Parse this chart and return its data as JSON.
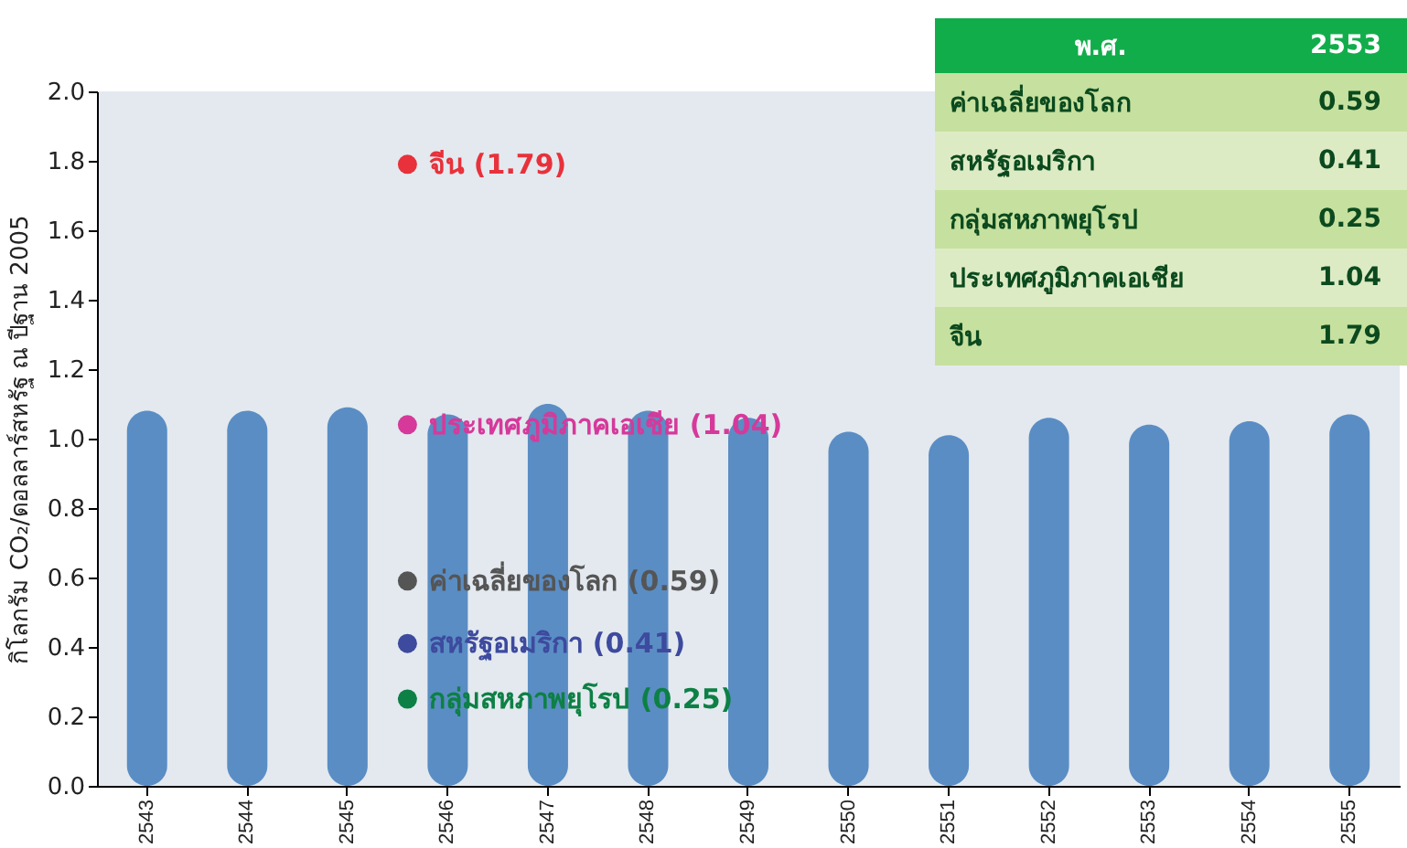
{
  "chart_data": {
    "type": "bar",
    "ylabel": "กิโลกรัม CO₂/ดอลลาร์สหรัฐ ณ ปีฐาน 2005",
    "categories": [
      "2543",
      "2544",
      "2545",
      "2546",
      "2547",
      "2548",
      "2549",
      "2550",
      "2551",
      "2552",
      "2553",
      "2554",
      "2555"
    ],
    "series": [
      {
        "color": "#5a8dc4",
        "values": [
          1.08,
          1.08,
          1.09,
          1.07,
          1.1,
          1.08,
          1.06,
          1.02,
          1.01,
          1.06,
          1.04,
          1.05,
          1.07
        ]
      },
      {
        "type": "scatter",
        "color": "#555555",
        "values": [
          null,
          null,
          null,
          0.59,
          null,
          null,
          null,
          null,
          null,
          null,
          null,
          null,
          null
        ],
        "value_labels": [
          null,
          null,
          null,
          "ค่าเฉลี่ยของโลก (0.59)",
          null,
          null,
          null,
          null,
          null,
          null,
          null,
          null,
          null
        ]
      },
      {
        "type": "scatter",
        "color": "#3d4a9e",
        "values": [
          null,
          null,
          null,
          0.41,
          null,
          null,
          null,
          null,
          null,
          null,
          null,
          null,
          null
        ],
        "value_labels": [
          null,
          null,
          null,
          "สหรัฐอเมริกา (0.41)",
          null,
          null,
          null,
          null,
          null,
          null,
          null,
          null,
          null
        ]
      },
      {
        "type": "scatter",
        "color": "#0d8045",
        "values": [
          null,
          null,
          null,
          0.25,
          null,
          null,
          null,
          null,
          null,
          null,
          null,
          null,
          null
        ],
        "value_labels": [
          null,
          null,
          null,
          "กลุ่มสหภาพยุโรป (0.25)",
          null,
          null,
          null,
          null,
          null,
          null,
          null,
          null,
          null
        ]
      },
      {
        "type": "scatter",
        "color": "#d6399a",
        "values": [
          null,
          null,
          null,
          1.04,
          null,
          null,
          null,
          null,
          null,
          null,
          null,
          null,
          null
        ],
        "value_labels": [
          null,
          null,
          null,
          "ประเทศภูมิภาคเอเชีย (1.04)",
          null,
          null,
          null,
          null,
          null,
          null,
          null,
          null,
          null
        ]
      },
      {
        "type": "scatter",
        "color": "#e8313b",
        "values": [
          null,
          null,
          null,
          1.79,
          null,
          null,
          null,
          null,
          null,
          null,
          null,
          null,
          null
        ],
        "value_labels": [
          null,
          null,
          null,
          "จีน (1.79)",
          null,
          null,
          null,
          null,
          null,
          null,
          null,
          null,
          null
        ]
      }
    ],
    "ylim": [
      0,
      2
    ],
    "yticks": [
      {
        "value": 0,
        "label": "0.0"
      },
      0.2,
      0.4,
      0.6,
      0.8,
      {
        "value": 1,
        "label": "1.0"
      },
      1.2,
      1.4,
      1.6,
      1.8,
      {
        "value": 2,
        "label": "2.0"
      }
    ],
    "grid": false,
    "marker": "circle",
    "annotations": [
      "พ.ศ.",
      "2553",
      "ค่าเฉลี่ยของโลก",
      "0.59",
      "สหรัฐอเมริกา",
      "0.41",
      "กลุ่มสหภาพยุโรป",
      "0.25",
      "ประเทศภูมิภาคเอเชีย",
      "1.04",
      "จีน",
      "1.79"
    ]
  }
}
